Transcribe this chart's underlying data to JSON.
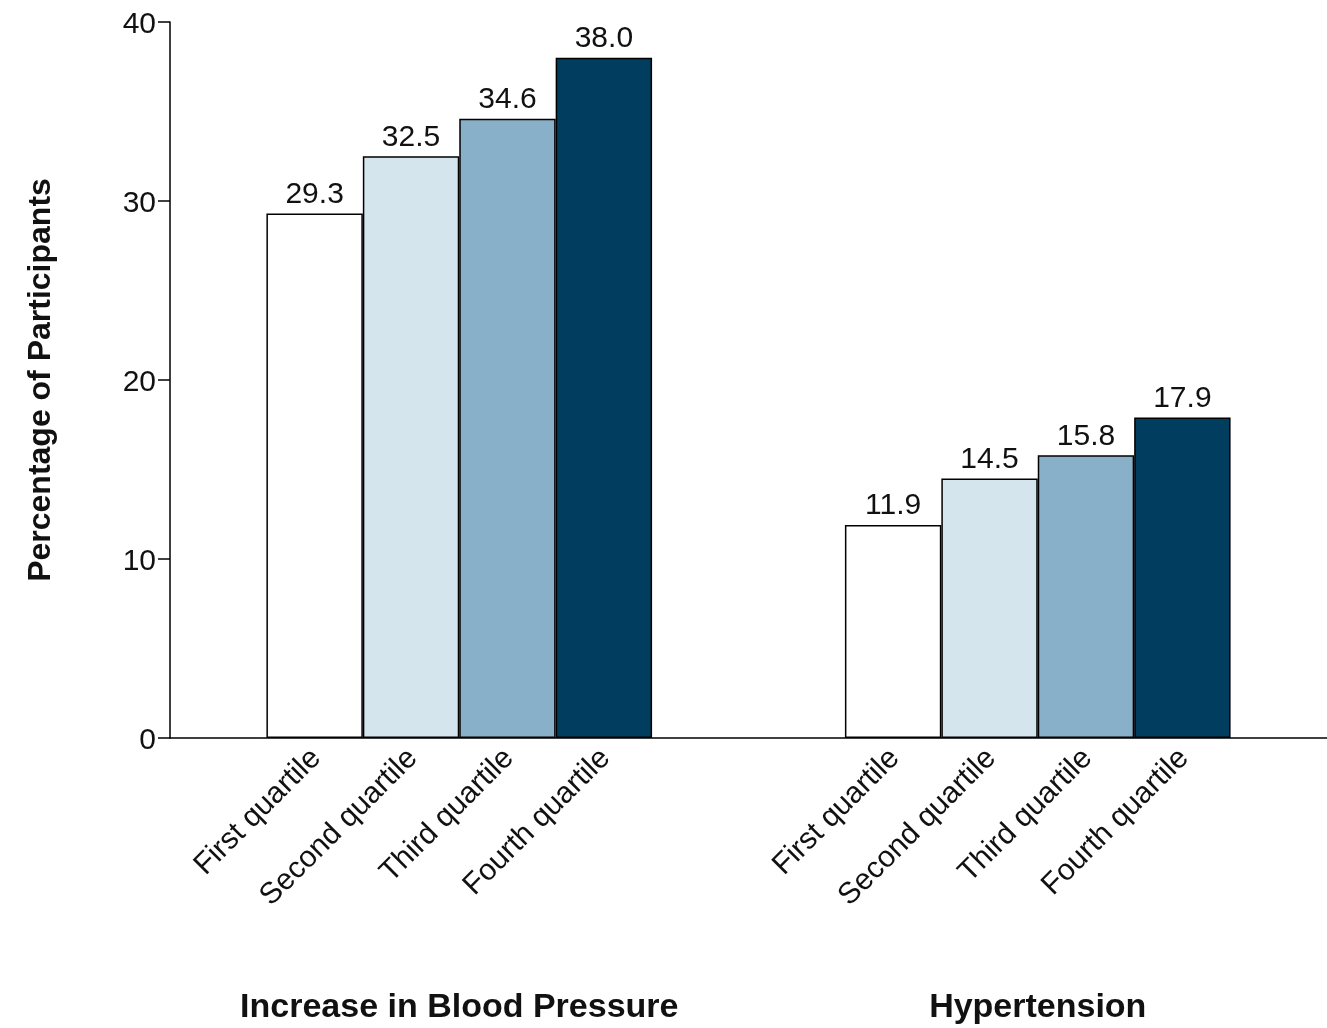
{
  "chart_data": {
    "type": "bar",
    "ylabel": "Percentage of Participants",
    "categories": [
      null,
      "First quartile",
      "Second quartile",
      "Third quartile",
      "Fourth quartile",
      null,
      null,
      "First quartile",
      "Second quartile",
      "Third quartile",
      "Fourth quartile",
      null
    ],
    "values": [
      null,
      29.3,
      32.5,
      34.6,
      38.0,
      null,
      null,
      11.9,
      14.5,
      15.8,
      17.9,
      null
    ],
    "value_labels": [
      null,
      "29.3",
      "32.5",
      "34.6",
      "38.0",
      null,
      null,
      "11.9",
      "14.5",
      "15.8",
      "17.9",
      null
    ],
    "colors": [
      null,
      "#ffffff",
      "#d5e5ee",
      "#88b0c9",
      "#003d5e",
      null,
      null,
      "#ffffff",
      "#d5e5ee",
      "#88b0c9",
      "#003d5e",
      null
    ],
    "annotations": [
      "Increase in Blood Pressure",
      "Hypertension"
    ],
    "ylim": [
      0,
      40
    ],
    "yticks": [
      0,
      10,
      20,
      30,
      40
    ],
    "grid": false
  }
}
